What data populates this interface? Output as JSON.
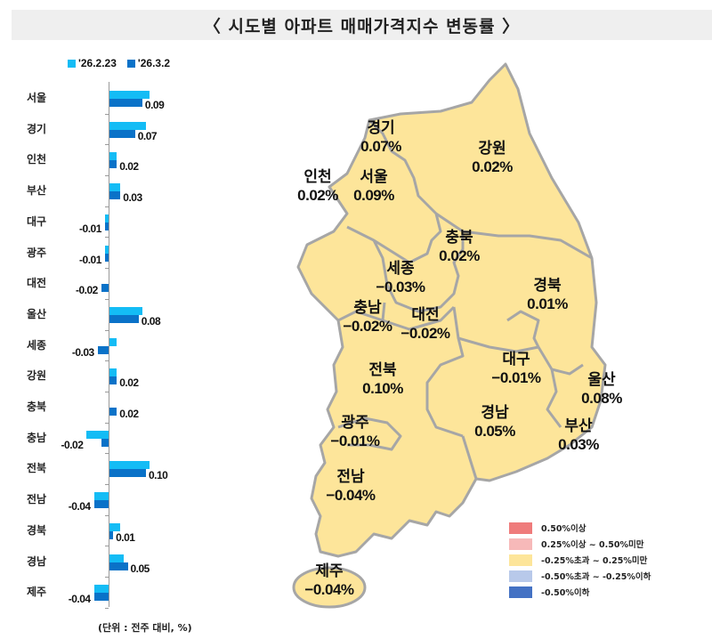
{
  "title": "〈 시도별 아파트 매매가격지수 변동률 〉",
  "legend": [
    {
      "label": "'26.2.23",
      "color": "#14bcf5"
    },
    {
      "label": "'26.3.2",
      "color": "#0a72c8"
    }
  ],
  "unit_note": "(단위 : 전주 대비, %)",
  "chart_data": {
    "type": "bar",
    "orientation": "horizontal",
    "title": "시도별 아파트 매매가격지수 변동률",
    "xlabel": "",
    "ylabel": "",
    "unit": "전주 대비, %",
    "categories": [
      "서울",
      "경기",
      "인천",
      "부산",
      "대구",
      "광주",
      "대전",
      "울산",
      "세종",
      "강원",
      "충북",
      "충남",
      "전북",
      "전남",
      "경북",
      "경남",
      "제주"
    ],
    "series": [
      {
        "name": "'26.2.23",
        "values": [
          0.11,
          0.1,
          0.02,
          0.03,
          -0.01,
          -0.01,
          0.0,
          0.09,
          0.02,
          0.02,
          0.0,
          -0.06,
          0.11,
          -0.04,
          0.03,
          0.04,
          -0.04
        ]
      },
      {
        "name": "'26.3.2",
        "values": [
          0.09,
          0.07,
          0.02,
          0.03,
          -0.01,
          -0.01,
          -0.02,
          0.08,
          -0.03,
          0.02,
          0.02,
          -0.02,
          0.1,
          -0.04,
          0.01,
          0.05,
          -0.04
        ]
      }
    ],
    "data_labels": [
      "0.09",
      "0.07",
      "0.02",
      "0.03",
      "-0.01",
      "-0.01",
      "-0.02",
      "0.08",
      "-0.03",
      "0.02",
      "0.02",
      "-0.02",
      "0.10",
      "-0.04",
      "0.01",
      "0.05",
      "-0.04"
    ],
    "grid": false,
    "legend_position": "top-left"
  },
  "map": {
    "regions": [
      {
        "name": "경기",
        "value": "0.07%"
      },
      {
        "name": "강원",
        "value": "0.02%"
      },
      {
        "name": "인천",
        "value": "0.02%"
      },
      {
        "name": "서울",
        "value": "0.09%"
      },
      {
        "name": "충북",
        "value": "0.02%"
      },
      {
        "name": "세종",
        "value": "−0.03%"
      },
      {
        "name": "경북",
        "value": "0.01%"
      },
      {
        "name": "충남",
        "value": "−0.02%"
      },
      {
        "name": "대전",
        "value": "−0.02%"
      },
      {
        "name": "대구",
        "value": "−0.01%"
      },
      {
        "name": "전북",
        "value": "0.10%"
      },
      {
        "name": "울산",
        "value": "0.08%"
      },
      {
        "name": "경남",
        "value": "0.05%"
      },
      {
        "name": "부산",
        "value": "0.03%"
      },
      {
        "name": "광주",
        "value": "−0.01%"
      },
      {
        "name": "전남",
        "value": "−0.04%"
      },
      {
        "name": "제주",
        "value": "−0.04%"
      }
    ],
    "fill_color": "#fde59a",
    "border_color": "#a6a6a6",
    "legend": [
      {
        "label": "0.50%이상",
        "color": "#ef7b7b"
      },
      {
        "label": "0.25%이상 ~ 0.50%미만",
        "color": "#f7b9b9"
      },
      {
        "label": "-0.25%초과 ~ 0.25%미만",
        "color": "#fde59a"
      },
      {
        "label": "-0.50%초과 ~ -0.25%이하",
        "color": "#b8c9ea"
      },
      {
        "label": "-0.50%이하",
        "color": "#4472c4"
      }
    ]
  }
}
